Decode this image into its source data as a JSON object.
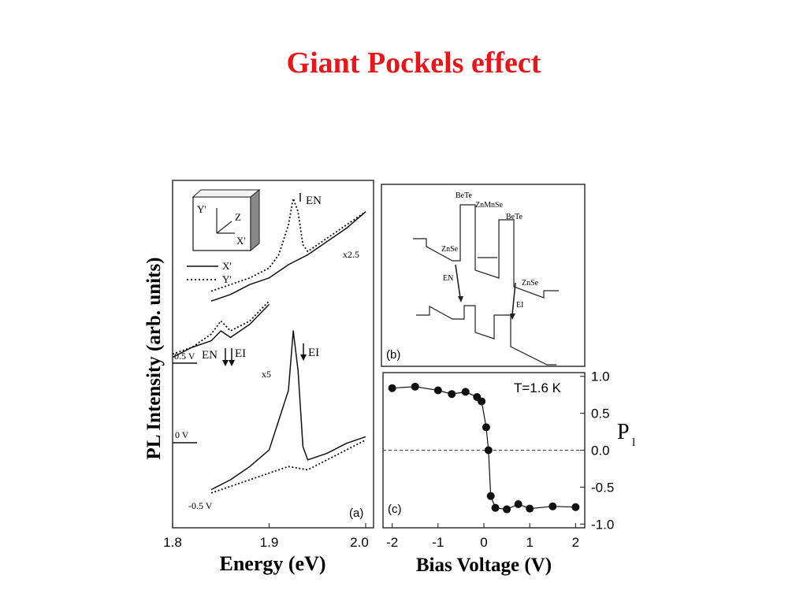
{
  "slide": {
    "title": "Giant Pockels effect",
    "title_color": "#e8151b"
  },
  "chart_data": [
    {
      "panel": "(a)",
      "type": "line",
      "xlabel": "Energy (eV)",
      "ylabel": "PL Intensity (arb. units)",
      "xlim": [
        1.8,
        2.0
      ],
      "xticks": [
        "1.8",
        "1.9",
        "2.0"
      ],
      "legend": {
        "placement": "top-left",
        "entries": [
          "X'",
          "Y'"
        ],
        "styles": [
          "solid",
          "dotted"
        ]
      },
      "inset_axes": [
        "Y'",
        "Z",
        "X'"
      ],
      "annotations": [
        "EN",
        "EI",
        "EN",
        "EI",
        "x2.5",
        "x5"
      ],
      "bias_labels": [
        "0.5 V",
        "0 V",
        "-0.5 V"
      ],
      "series": [
        {
          "name": "X'",
          "group": "0.5 V",
          "scale": "x2.5",
          "x": [
            1.84,
            1.86,
            1.88,
            1.9,
            1.92,
            1.94,
            1.96,
            1.98,
            2.0
          ],
          "y": [
            0.69,
            0.71,
            0.74,
            0.76,
            0.8,
            0.83,
            0.87,
            0.91,
            0.96
          ]
        },
        {
          "name": "Y'",
          "group": "0.5 V",
          "scale": "x2.5",
          "x": [
            1.84,
            1.86,
            1.88,
            1.9,
            1.91,
            1.92,
            1.925,
            1.93,
            1.935,
            1.94,
            1.96,
            1.98,
            2.0
          ],
          "y": [
            0.72,
            0.74,
            0.76,
            0.79,
            0.83,
            0.92,
            1.0,
            0.96,
            0.86,
            0.84,
            0.88,
            0.92,
            0.96
          ]
        },
        {
          "name": "X'",
          "group": "0 V",
          "scale": "x5",
          "x": [
            1.8,
            1.82,
            1.84,
            1.85,
            1.86,
            1.88,
            1.9
          ],
          "y": [
            0.52,
            0.55,
            0.57,
            0.6,
            0.58,
            0.62,
            0.68
          ]
        },
        {
          "name": "Y'",
          "group": "0 V",
          "scale": "x5",
          "x": [
            1.8,
            1.82,
            1.84,
            1.845,
            1.85,
            1.86,
            1.88,
            1.9
          ],
          "y": [
            0.53,
            0.55,
            0.59,
            0.61,
            0.63,
            0.6,
            0.63,
            0.69
          ]
        },
        {
          "name": "X'",
          "group": "-0.5 V",
          "x": [
            1.84,
            1.86,
            1.88,
            1.9,
            1.92,
            1.925,
            1.93,
            1.935,
            1.94,
            1.96,
            1.98,
            2.0
          ],
          "y": [
            0.12,
            0.15,
            0.19,
            0.24,
            0.42,
            0.6,
            0.48,
            0.25,
            0.21,
            0.23,
            0.26,
            0.28
          ]
        },
        {
          "name": "Y'",
          "group": "-0.5 V",
          "x": [
            1.84,
            1.86,
            1.88,
            1.9,
            1.92,
            1.94,
            1.96,
            1.98,
            2.0
          ],
          "y": [
            0.11,
            0.13,
            0.15,
            0.17,
            0.19,
            0.18,
            0.21,
            0.24,
            0.27
          ]
        }
      ]
    },
    {
      "panel": "(b)",
      "type": "diagram",
      "labels": [
        "BeTe",
        "ZnMnSe",
        "BeTe",
        "ZnSe",
        "ZnSe",
        "EN",
        "EI"
      ]
    },
    {
      "panel": "(c)",
      "type": "scatter",
      "xlabel": "Bias Voltage (V)",
      "ylabel": "P",
      "ylabel_subscript": "l",
      "annotation": "T=1.6 K",
      "xlim": [
        -2.2,
        2.2
      ],
      "ylim": [
        -1.05,
        1.05
      ],
      "xticks": [
        "-2",
        "-1",
        "0",
        "1",
        "2"
      ],
      "yticks": [
        "1.0",
        "0.5",
        "0.0",
        "-0.5",
        "-1.0"
      ],
      "reference_line": {
        "y": 0,
        "style": "dashed"
      },
      "x": [
        -2.0,
        -1.5,
        -1.0,
        -0.7,
        -0.4,
        -0.15,
        -0.05,
        0.05,
        0.1,
        0.15,
        0.25,
        0.5,
        0.75,
        1.0,
        1.5,
        2.0
      ],
      "y": [
        0.84,
        0.86,
        0.81,
        0.76,
        0.79,
        0.72,
        0.66,
        0.31,
        0.0,
        -0.62,
        -0.78,
        -0.8,
        -0.73,
        -0.79,
        -0.76,
        -0.77
      ]
    }
  ]
}
